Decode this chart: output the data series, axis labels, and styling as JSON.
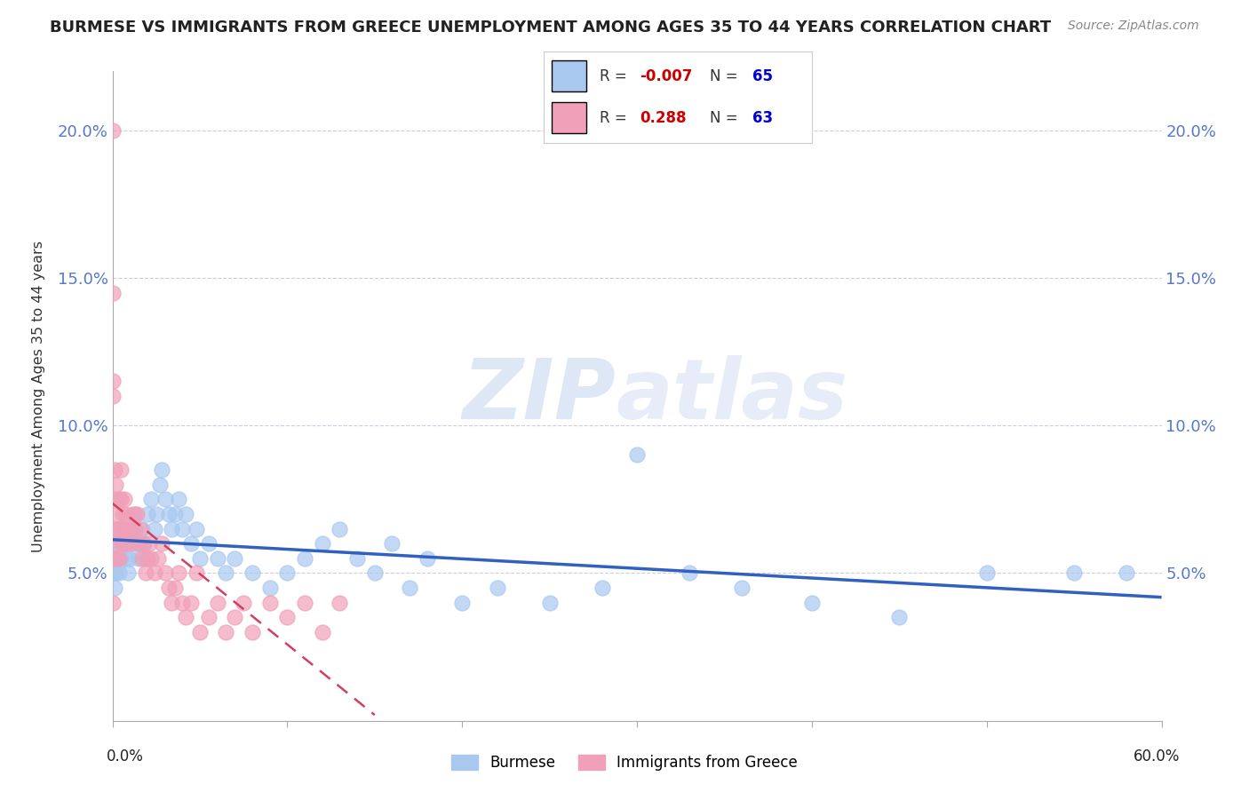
{
  "title": "BURMESE VS IMMIGRANTS FROM GREECE UNEMPLOYMENT AMONG AGES 35 TO 44 YEARS CORRELATION CHART",
  "source": "Source: ZipAtlas.com",
  "watermark_zip": "ZIP",
  "watermark_atlas": "atlas",
  "ylabel": "Unemployment Among Ages 35 to 44 years",
  "xmin": 0.0,
  "xmax": 0.6,
  "ymin": 0.0,
  "ymax": 0.22,
  "yticks": [
    0.05,
    0.1,
    0.15,
    0.2
  ],
  "ytick_labels": [
    "5.0%",
    "10.0%",
    "15.0%",
    "20.0%"
  ],
  "blue_R": "-0.007",
  "blue_N": "65",
  "pink_R": "0.288",
  "pink_N": "63",
  "blue_color": "#a8c8f0",
  "pink_color": "#f0a0b8",
  "blue_label": "Burmese",
  "pink_label": "Immigrants from Greece",
  "blue_trend_color": "#3060c0",
  "pink_trend_color": "#d04060",
  "background_color": "#ffffff",
  "grid_color": "#c8c8d8",
  "title_color": "#222222",
  "legend_R_color": "#cc0000",
  "legend_N_color": "#0000cc",
  "blue_scatter_x": [
    0.0,
    0.001,
    0.002,
    0.002,
    0.003,
    0.004,
    0.005,
    0.005,
    0.006,
    0.007,
    0.008,
    0.009,
    0.01,
    0.011,
    0.012,
    0.013,
    0.014,
    0.015,
    0.016,
    0.017,
    0.018,
    0.019,
    0.02,
    0.022,
    0.024,
    0.025,
    0.027,
    0.028,
    0.03,
    0.032,
    0.034,
    0.036,
    0.038,
    0.04,
    0.042,
    0.045,
    0.048,
    0.05,
    0.055,
    0.06,
    0.065,
    0.07,
    0.08,
    0.09,
    0.1,
    0.11,
    0.12,
    0.13,
    0.14,
    0.15,
    0.16,
    0.17,
    0.18,
    0.2,
    0.22,
    0.25,
    0.28,
    0.3,
    0.33,
    0.36,
    0.4,
    0.45,
    0.5,
    0.55,
    0.58
  ],
  "blue_scatter_y": [
    0.05,
    0.045,
    0.06,
    0.05,
    0.055,
    0.05,
    0.06,
    0.055,
    0.065,
    0.06,
    0.055,
    0.05,
    0.055,
    0.06,
    0.065,
    0.07,
    0.06,
    0.055,
    0.06,
    0.065,
    0.06,
    0.055,
    0.07,
    0.075,
    0.065,
    0.07,
    0.08,
    0.085,
    0.075,
    0.07,
    0.065,
    0.07,
    0.075,
    0.065,
    0.07,
    0.06,
    0.065,
    0.055,
    0.06,
    0.055,
    0.05,
    0.055,
    0.05,
    0.045,
    0.05,
    0.055,
    0.06,
    0.065,
    0.055,
    0.05,
    0.06,
    0.045,
    0.055,
    0.04,
    0.045,
    0.04,
    0.045,
    0.09,
    0.05,
    0.045,
    0.04,
    0.035,
    0.05,
    0.05,
    0.05
  ],
  "pink_scatter_x": [
    0.0,
    0.0,
    0.0,
    0.0,
    0.0,
    0.0,
    0.001,
    0.001,
    0.001,
    0.002,
    0.002,
    0.003,
    0.003,
    0.003,
    0.004,
    0.004,
    0.004,
    0.005,
    0.005,
    0.006,
    0.006,
    0.007,
    0.007,
    0.008,
    0.008,
    0.009,
    0.01,
    0.011,
    0.012,
    0.013,
    0.014,
    0.015,
    0.016,
    0.017,
    0.018,
    0.019,
    0.02,
    0.021,
    0.022,
    0.024,
    0.026,
    0.028,
    0.03,
    0.032,
    0.034,
    0.036,
    0.038,
    0.04,
    0.042,
    0.045,
    0.048,
    0.05,
    0.055,
    0.06,
    0.065,
    0.07,
    0.075,
    0.08,
    0.09,
    0.1,
    0.11,
    0.12,
    0.13
  ],
  "pink_scatter_y": [
    0.2,
    0.145,
    0.115,
    0.11,
    0.055,
    0.04,
    0.085,
    0.075,
    0.065,
    0.08,
    0.06,
    0.07,
    0.065,
    0.055,
    0.075,
    0.065,
    0.055,
    0.085,
    0.075,
    0.07,
    0.06,
    0.075,
    0.065,
    0.07,
    0.06,
    0.065,
    0.065,
    0.06,
    0.07,
    0.065,
    0.07,
    0.06,
    0.065,
    0.055,
    0.06,
    0.05,
    0.055,
    0.06,
    0.055,
    0.05,
    0.055,
    0.06,
    0.05,
    0.045,
    0.04,
    0.045,
    0.05,
    0.04,
    0.035,
    0.04,
    0.05,
    0.03,
    0.035,
    0.04,
    0.03,
    0.035,
    0.04,
    0.03,
    0.04,
    0.035,
    0.04,
    0.03,
    0.04
  ]
}
